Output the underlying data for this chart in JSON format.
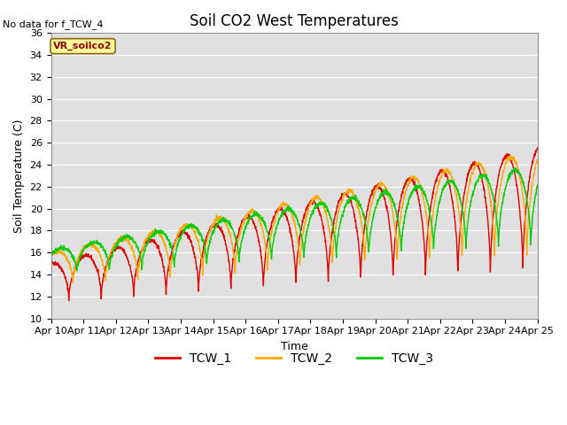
{
  "title": "Soil CO2 West Temperatures",
  "xlabel": "Time",
  "ylabel": "Soil Temperature (C)",
  "ylim": [
    10,
    36
  ],
  "yticks": [
    10,
    12,
    14,
    16,
    18,
    20,
    22,
    24,
    26,
    28,
    30,
    32,
    34,
    36
  ],
  "no_data_text": "No data for f_TCW_4",
  "vr_label": "VR_soilco2",
  "legend_entries": [
    "TCW_1",
    "TCW_2",
    "TCW_3"
  ],
  "line_colors": [
    "#dd0000",
    "#ffaa00",
    "#00cc00"
  ],
  "background_color": "#e0e0e0",
  "x_tick_labels": [
    "Apr 10",
    "Apr 11",
    "Apr 12",
    "Apr 13",
    "Apr 14",
    "Apr 15",
    "Apr 16",
    "Apr 17",
    "Apr 18",
    "Apr 19",
    "Apr 20",
    "Apr 21",
    "Apr 22",
    "Apr 23",
    "Apr 24",
    "Apr 25"
  ],
  "n_days": 15
}
